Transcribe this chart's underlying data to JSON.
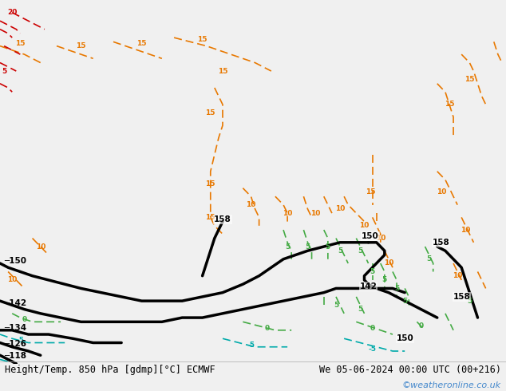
{
  "title_left": "Height/Temp. 850 hPa [gdmp][°C] ECMWF",
  "title_right": "We 05-06-2024 00:00 UTC (00+216)",
  "watermark": "©weatheronline.co.uk",
  "bg_color": "#f0f0f0",
  "land_color": "#c8c8c8",
  "australia_color": "#b8e890",
  "sea_color": "#f0f0f0",
  "watermark_color": "#4488cc",
  "contour_black_color": "#000000",
  "contour_orange_color": "#e87800",
  "contour_green_color": "#44aa44",
  "contour_red_color": "#cc0000",
  "contour_cyan_color": "#00aaaa",
  "lon_min": 60,
  "lon_max": 185,
  "lat_min": -62,
  "lat_max": 25,
  "figw": 6.34,
  "figh": 4.9,
  "dpi": 100
}
